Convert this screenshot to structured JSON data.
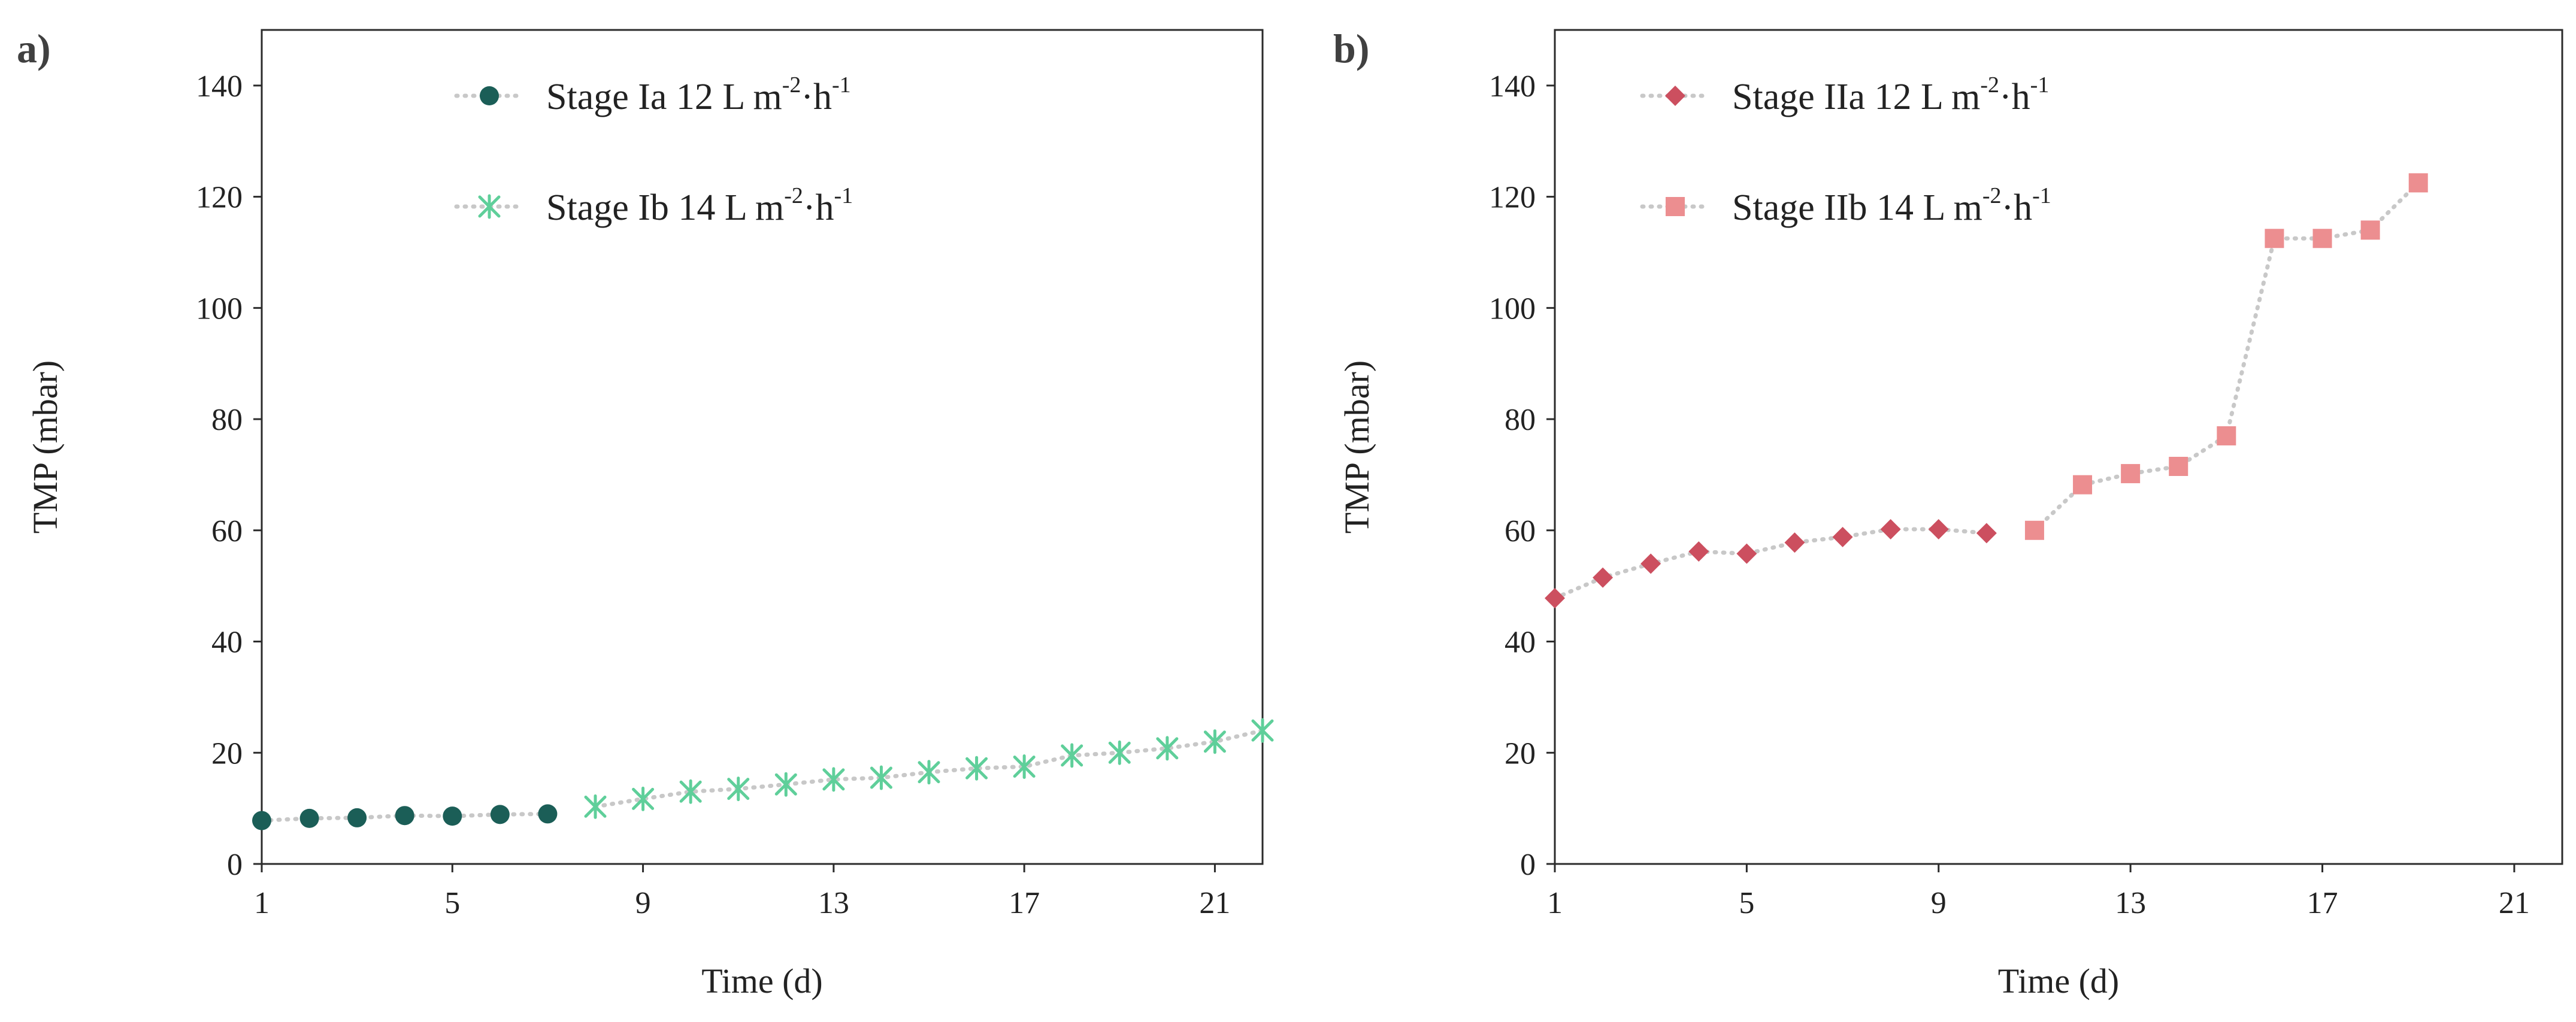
{
  "chart_data": [
    {
      "type": "line",
      "panel_label": "a)",
      "title": "",
      "xlabel": "Time (d)",
      "ylabel": "TMP (mbar)",
      "xlim": [
        1,
        22
      ],
      "ylim": [
        0,
        150
      ],
      "xticks": [
        1,
        5,
        9,
        13,
        17,
        21
      ],
      "yticks": [
        0,
        20,
        40,
        60,
        80,
        100,
        120,
        140
      ],
      "grid": false,
      "legend_position": "top-center",
      "series": [
        {
          "name": "Stage Ia 12 L m-2·h-1",
          "label_parts": [
            "Stage Ia 12 L m",
            "-2",
            "·h",
            "-1"
          ],
          "marker": "circle",
          "color": "#1b5e57",
          "line_color": "#c8c8c8",
          "x": [
            1,
            2,
            3,
            4,
            5,
            6,
            7
          ],
          "values": [
            7.8,
            8.2,
            8.3,
            8.7,
            8.6,
            8.9,
            9.0
          ]
        },
        {
          "name": "Stage Ib 14 L m-2·h-1",
          "label_parts": [
            "Stage Ib 14 L m",
            "-2",
            "·h",
            "-1"
          ],
          "marker": "asterisk",
          "color": "#5fcf9a",
          "line_color": "#c8c8c8",
          "x": [
            8,
            9,
            10,
            11,
            12,
            13,
            14,
            15,
            16,
            17,
            18,
            19,
            20,
            21,
            22
          ],
          "values": [
            10.3,
            11.7,
            13.0,
            13.5,
            14.3,
            15.2,
            15.5,
            16.5,
            17.2,
            17.5,
            19.5,
            20.0,
            20.8,
            22.0,
            24.0
          ]
        }
      ]
    },
    {
      "type": "line",
      "panel_label": "b)",
      "title": "",
      "xlabel": "Time (d)",
      "ylabel": "TMP (mbar)",
      "xlim": [
        1,
        22
      ],
      "ylim": [
        0,
        150
      ],
      "xticks": [
        1,
        5,
        9,
        13,
        17,
        21
      ],
      "yticks": [
        0,
        20,
        40,
        60,
        80,
        100,
        120,
        140
      ],
      "grid": false,
      "legend_position": "top-center",
      "series": [
        {
          "name": "Stage IIa 12 L m-2·h-1",
          "label_parts": [
            "Stage IIa 12 L m",
            "-2",
            "·h",
            "-1"
          ],
          "marker": "diamond",
          "color": "#cc4f5f",
          "line_color": "#c8c8c8",
          "x": [
            1,
            2,
            3,
            4,
            5,
            6,
            7,
            8,
            9,
            10
          ],
          "values": [
            47.8,
            51.5,
            54.0,
            56.2,
            55.8,
            57.8,
            58.8,
            60.2,
            60.2,
            59.5
          ]
        },
        {
          "name": "Stage IIb 14 L m-2·h-1",
          "label_parts": [
            "Stage IIb 14 L m",
            "-2",
            "·h",
            "-1"
          ],
          "marker": "square",
          "color": "#ec8e90",
          "line_color": "#c8c8c8",
          "x": [
            11,
            12,
            13,
            14,
            15,
            16,
            17,
            18,
            19
          ],
          "values": [
            60.0,
            68.2,
            70.2,
            71.5,
            77.0,
            112.5,
            112.5,
            114.0,
            122.5
          ]
        }
      ]
    }
  ]
}
